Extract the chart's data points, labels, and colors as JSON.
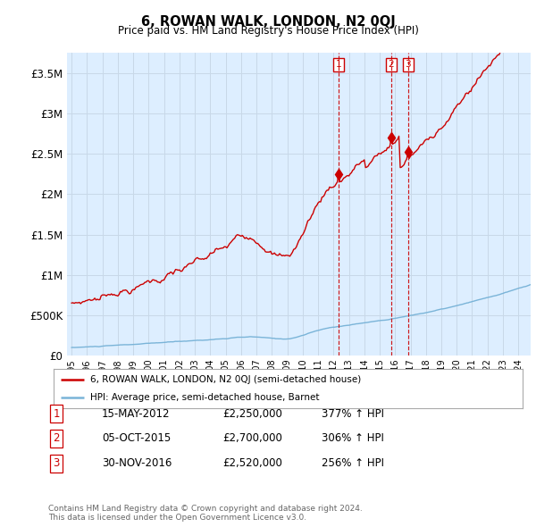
{
  "title": "6, ROWAN WALK, LONDON, N2 0QJ",
  "subtitle": "Price paid vs. HM Land Registry's House Price Index (HPI)",
  "hpi_color": "#7ab4d8",
  "price_color": "#cc0000",
  "vline_color": "#cc0000",
  "chart_bg": "#ddeeff",
  "ylim": [
    0,
    3750000
  ],
  "yticks": [
    0,
    500000,
    1000000,
    1500000,
    2000000,
    2500000,
    3000000,
    3500000
  ],
  "ytick_labels": [
    "£0",
    "£500K",
    "£1M",
    "£1.5M",
    "£2M",
    "£2.5M",
    "£3M",
    "£3.5M"
  ],
  "transaction_prices": [
    2250000,
    2700000,
    2520000
  ],
  "transaction_labels": [
    "1",
    "2",
    "3"
  ],
  "transaction_info": [
    {
      "label": "1",
      "date": "15-MAY-2012",
      "price": "£2,250,000",
      "pct": "377% ↑ HPI"
    },
    {
      "label": "2",
      "date": "05-OCT-2015",
      "price": "£2,700,000",
      "pct": "306% ↑ HPI"
    },
    {
      "label": "3",
      "date": "30-NOV-2016",
      "price": "£2,520,000",
      "pct": "256% ↑ HPI"
    }
  ],
  "legend_line1": "6, ROWAN WALK, LONDON, N2 0QJ (semi-detached house)",
  "legend_line2": "HPI: Average price, semi-detached house, Barnet",
  "footnote": "Contains HM Land Registry data © Crown copyright and database right 2024.\nThis data is licensed under the Open Government Licence v3.0.",
  "background_color": "#ffffff",
  "grid_color": "#c8d8e8"
}
